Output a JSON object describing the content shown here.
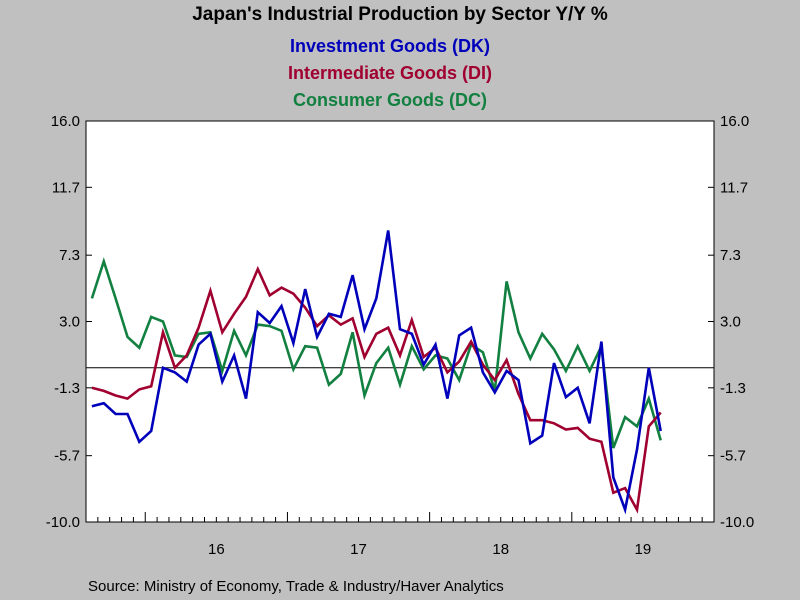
{
  "chart_data": {
    "type": "line",
    "title": "Japan's Industrial Production by Sector Y/Y %",
    "source": "Source:  Ministry of Economy, Trade & Industry/Haver Analytics",
    "yticks": [
      "16.0",
      "11.7",
      "7.3",
      "3.0",
      "-1.3",
      "-5.7",
      "-10.0"
    ],
    "ylim": [
      -10,
      16
    ],
    "xlabels": [
      "16",
      "17",
      "18",
      "19"
    ],
    "x_start": "2015-08",
    "x_end": "2019-12",
    "zero_line": 0,
    "series": [
      {
        "name": "Investment Goods (DK)",
        "color": "#0000bb",
        "values": [
          -2.5,
          -2.3,
          -3.0,
          -3.0,
          -4.8,
          -4.1,
          0.0,
          -0.3,
          -0.9,
          1.5,
          2.2,
          -0.9,
          0.8,
          -2.0,
          3.6,
          2.9,
          4.0,
          1.6,
          5.1,
          2.0,
          3.5,
          3.3,
          6.0,
          2.5,
          4.5,
          8.9,
          2.5,
          2.2,
          0.2,
          1.5,
          -2.0,
          2.1,
          2.6,
          -0.3,
          -1.6,
          -0.2,
          -0.8,
          -4.9,
          -4.4,
          0.3,
          -1.9,
          -1.3,
          -3.6,
          1.7,
          -7.1,
          -9.2,
          -5.3,
          0.0,
          -4.1
        ],
        "color_note": "blue"
      },
      {
        "name": "Intermediate Goods (DI)",
        "color": "#a00030",
        "values": [
          -1.3,
          -1.5,
          -1.8,
          -2.0,
          -1.4,
          -1.2,
          2.3,
          0.0,
          0.8,
          2.6,
          5.0,
          2.3,
          3.5,
          4.6,
          6.4,
          4.7,
          5.2,
          4.8,
          3.9,
          2.7,
          3.4,
          2.8,
          3.2,
          0.7,
          2.2,
          2.6,
          0.8,
          3.1,
          0.7,
          1.3,
          -0.3,
          0.4,
          1.7,
          0.2,
          -0.8,
          0.5,
          -1.7,
          -3.4,
          -3.4,
          -3.6,
          -4.0,
          -3.9,
          -4.6,
          -4.8,
          -8.1,
          -7.8,
          -9.2,
          -3.8,
          -2.9
        ],
        "color_note": "red"
      },
      {
        "name": "Consumer Goods (DC)",
        "color": "#128040",
        "values": [
          4.5,
          6.9,
          4.5,
          2.0,
          1.3,
          3.3,
          3.0,
          0.8,
          0.7,
          2.2,
          2.3,
          -0.2,
          2.4,
          0.8,
          2.8,
          2.7,
          2.4,
          -0.1,
          1.4,
          1.3,
          -1.1,
          -0.4,
          2.3,
          -1.8,
          0.3,
          1.3,
          -1.1,
          1.4,
          -0.1,
          0.8,
          0.6,
          -0.8,
          1.5,
          1.0,
          -1.5,
          5.6,
          2.3,
          0.6,
          2.2,
          1.2,
          -0.2,
          1.4,
          -0.2,
          1.4,
          -5.2,
          -3.2,
          -3.8,
          -2.0,
          -4.7
        ],
        "color_note": "green"
      }
    ],
    "colors": {
      "background": "#c0c0c0",
      "plot_bg": "#ffffff"
    }
  }
}
